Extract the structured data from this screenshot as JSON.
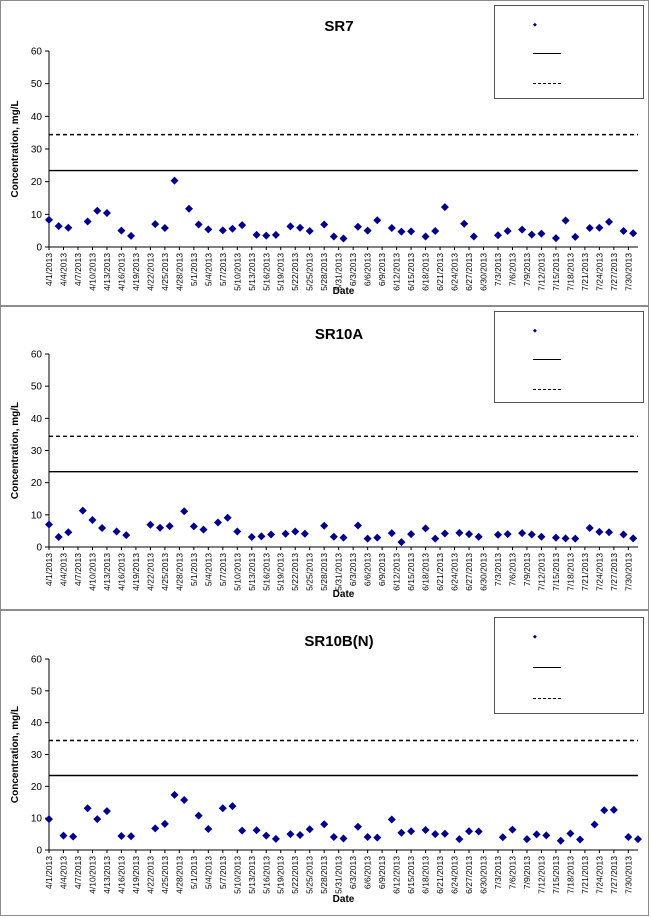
{
  "chart_data": [
    {
      "type": "scatter",
      "title": "SR7",
      "xlabel": "Date",
      "ylabel": "Concentration, mg/L",
      "ylim": [
        0,
        60
      ],
      "yticks": [
        0,
        10,
        20,
        30,
        40,
        50,
        60
      ],
      "xticks": [
        "4/1/2013",
        "4/4/2013",
        "4/7/2013",
        "4/10/2013",
        "4/13/2013",
        "4/16/2013",
        "4/19/2013",
        "4/22/2013",
        "4/25/2013",
        "4/28/2013",
        "5/1/2013",
        "5/4/2013",
        "5/7/2013",
        "5/10/2013",
        "5/13/2013",
        "5/16/2013",
        "5/19/2013",
        "5/22/2013",
        "5/25/2013",
        "5/28/2013",
        "5/31/2013",
        "6/3/2013",
        "6/6/2013",
        "6/9/2013",
        "6/12/2013",
        "6/15/2013",
        "6/18/2013",
        "6/21/2013",
        "6/24/2013",
        "6/27/2013",
        "6/30/2013",
        "7/3/2013",
        "7/6/2013",
        "7/9/2013",
        "7/12/2013",
        "7/15/2013",
        "7/18/2013",
        "7/21/2013",
        "7/24/2013",
        "7/27/2013",
        "7/30/2013"
      ],
      "reference_lines": [
        {
          "value": 23.4,
          "style": "solid"
        },
        {
          "value": 34.4,
          "style": "dashed"
        }
      ],
      "legend_position": "top-right",
      "series": [
        {
          "x": [
            "4/1/2013",
            "4/3/2013",
            "4/5/2013",
            "4/9/2013",
            "4/11/2013",
            "4/13/2013",
            "4/16/2013",
            "4/18/2013",
            "4/23/2013",
            "4/25/2013",
            "4/27/2013",
            "4/30/2013",
            "5/2/2013",
            "5/4/2013",
            "5/7/2013",
            "5/9/2013",
            "5/11/2013",
            "5/14/2013",
            "5/16/2013",
            "5/18/2013",
            "5/21/2013",
            "5/23/2013",
            "5/25/2013",
            "5/28/2013",
            "5/30/2013",
            "6/1/2013",
            "6/4/2013",
            "6/6/2013",
            "6/8/2013",
            "6/11/2013",
            "6/13/2013",
            "6/15/2013",
            "6/18/2013",
            "6/20/2013",
            "6/22/2013",
            "6/26/2013",
            "6/28/2013",
            "7/3/2013",
            "7/5/2013",
            "7/8/2013",
            "7/10/2013",
            "7/12/2013",
            "7/15/2013",
            "7/17/2013",
            "7/19/2013",
            "7/22/2013",
            "7/24/2013",
            "7/26/2013",
            "7/29/2013",
            "7/31/2013"
          ],
          "values": [
            8.3,
            6.4,
            5.9,
            7.8,
            11.1,
            10.4,
            5.0,
            3.4,
            7.0,
            5.8,
            20.3,
            11.7,
            6.9,
            5.4,
            5.1,
            5.6,
            6.7,
            3.7,
            3.5,
            3.7,
            6.3,
            5.9,
            4.9,
            6.9,
            3.2,
            2.6,
            6.2,
            5.0,
            8.2,
            5.8,
            4.7,
            4.8,
            3.2,
            4.9,
            12.2,
            7.1,
            3.2,
            3.6,
            4.9,
            5.3,
            3.8,
            4.1,
            2.7,
            8.1,
            3.1,
            5.8,
            5.9,
            7.7,
            4.9,
            4.2
          ]
        }
      ]
    },
    {
      "type": "scatter",
      "title": "SR10A",
      "xlabel": "Date",
      "ylabel": "Concentration, mg/L",
      "ylim": [
        0,
        60
      ],
      "yticks": [
        0,
        10,
        20,
        30,
        40,
        50,
        60
      ],
      "xticks": [
        "4/1/2013",
        "4/4/2013",
        "4/7/2013",
        "4/10/2013",
        "4/13/2013",
        "4/16/2013",
        "4/19/2013",
        "4/22/2013",
        "4/25/2013",
        "4/28/2013",
        "5/1/2013",
        "5/4/2013",
        "5/7/2013",
        "5/10/2013",
        "5/13/2013",
        "5/16/2013",
        "5/19/2013",
        "5/22/2013",
        "5/25/2013",
        "5/28/2013",
        "5/31/2013",
        "6/3/2013",
        "6/6/2013",
        "6/9/2013",
        "6/12/2013",
        "6/15/2013",
        "6/18/2013",
        "6/21/2013",
        "6/24/2013",
        "6/27/2013",
        "6/30/2013",
        "7/3/2013",
        "7/6/2013",
        "7/9/2013",
        "7/12/2013",
        "7/15/2013",
        "7/18/2013",
        "7/21/2013",
        "7/24/2013",
        "7/27/2013",
        "7/30/2013"
      ],
      "reference_lines": [
        {
          "value": 23.4,
          "style": "solid"
        },
        {
          "value": 34.4,
          "style": "dashed"
        }
      ],
      "legend_position": "top-right",
      "series": [
        {
          "x": [
            "4/1/2013",
            "4/3/2013",
            "4/5/2013",
            "4/8/2013",
            "4/10/2013",
            "4/12/2013",
            "4/15/2013",
            "4/17/2013",
            "4/22/2013",
            "4/24/2013",
            "4/26/2013",
            "4/29/2013",
            "5/1/2013",
            "5/3/2013",
            "5/6/2013",
            "5/8/2013",
            "5/10/2013",
            "5/13/2013",
            "5/15/2013",
            "5/17/2013",
            "5/20/2013",
            "5/22/2013",
            "5/24/2013",
            "5/28/2013",
            "5/30/2013",
            "6/1/2013",
            "6/4/2013",
            "6/6/2013",
            "6/8/2013",
            "6/11/2013",
            "6/13/2013",
            "6/15/2013",
            "6/18/2013",
            "6/20/2013",
            "6/22/2013",
            "6/25/2013",
            "6/27/2013",
            "6/29/2013",
            "7/3/2013",
            "7/5/2013",
            "7/8/2013",
            "7/10/2013",
            "7/12/2013",
            "7/15/2013",
            "7/17/2013",
            "7/19/2013",
            "7/22/2013",
            "7/24/2013",
            "7/26/2013",
            "7/29/2013",
            "7/31/2013"
          ],
          "values": [
            7.0,
            3.1,
            4.6,
            11.3,
            8.4,
            5.9,
            4.8,
            3.7,
            6.9,
            6.0,
            6.5,
            11.1,
            6.4,
            5.4,
            7.6,
            9.1,
            4.8,
            3.1,
            3.3,
            3.9,
            4.1,
            4.8,
            4.1,
            6.6,
            3.2,
            2.9,
            6.7,
            2.6,
            2.9,
            4.3,
            1.5,
            4.0,
            5.8,
            2.6,
            4.2,
            4.4,
            4.0,
            3.2,
            3.8,
            4.0,
            4.3,
            3.9,
            3.2,
            2.9,
            2.7,
            2.6,
            5.9,
            4.7,
            4.6,
            3.9,
            2.7
          ]
        }
      ]
    },
    {
      "type": "scatter",
      "title": "SR10B(N)",
      "xlabel": "Date",
      "ylabel": "Concentration, mg/L",
      "ylim": [
        0,
        60
      ],
      "yticks": [
        0,
        10,
        20,
        30,
        40,
        50,
        60
      ],
      "xticks": [
        "4/1/2013",
        "4/4/2013",
        "4/7/2013",
        "4/10/2013",
        "4/13/2013",
        "4/16/2013",
        "4/19/2013",
        "4/22/2013",
        "4/25/2013",
        "4/28/2013",
        "5/1/2013",
        "5/4/2013",
        "5/7/2013",
        "5/10/2013",
        "5/13/2013",
        "5/16/2013",
        "5/19/2013",
        "5/22/2013",
        "5/25/2013",
        "5/28/2013",
        "5/31/2013",
        "6/3/2013",
        "6/6/2013",
        "6/9/2013",
        "6/12/2013",
        "6/15/2013",
        "6/18/2013",
        "6/21/2013",
        "6/24/2013",
        "6/27/2013",
        "6/30/2013",
        "7/3/2013",
        "7/6/2013",
        "7/9/2013",
        "7/12/2013",
        "7/15/2013",
        "7/18/2013",
        "7/21/2013",
        "7/24/2013",
        "7/27/2013",
        "7/30/2013"
      ],
      "reference_lines": [
        {
          "value": 23.4,
          "style": "solid"
        },
        {
          "value": 34.4,
          "style": "dashed"
        }
      ],
      "legend_position": "top-right",
      "series": [
        {
          "x": [
            "4/1/2013",
            "4/4/2013",
            "4/6/2013",
            "4/9/2013",
            "4/11/2013",
            "4/13/2013",
            "4/16/2013",
            "4/18/2013",
            "4/23/2013",
            "4/25/2013",
            "4/27/2013",
            "4/29/2013",
            "5/2/2013",
            "5/4/2013",
            "5/7/2013",
            "5/9/2013",
            "5/11/2013",
            "5/14/2013",
            "5/16/2013",
            "5/18/2013",
            "5/21/2013",
            "5/23/2013",
            "5/25/2013",
            "5/28/2013",
            "5/30/2013",
            "6/1/2013",
            "6/4/2013",
            "6/6/2013",
            "6/8/2013",
            "6/11/2013",
            "6/13/2013",
            "6/15/2013",
            "6/18/2013",
            "6/20/2013",
            "6/22/2013",
            "6/25/2013",
            "6/27/2013",
            "6/29/2013",
            "7/4/2013",
            "7/6/2013",
            "7/9/2013",
            "7/11/2013",
            "7/13/2013",
            "7/16/2013",
            "7/18/2013",
            "7/20/2013",
            "7/23/2013",
            "7/25/2013",
            "7/27/2013",
            "7/30/2013",
            "8/1/2013"
          ],
          "values": [
            9.7,
            4.5,
            4.2,
            13.1,
            9.7,
            12.2,
            4.4,
            4.3,
            6.8,
            8.2,
            17.3,
            15.7,
            10.8,
            6.6,
            13.1,
            13.8,
            6.1,
            6.2,
            4.5,
            3.5,
            5.0,
            4.7,
            6.5,
            8.1,
            4.1,
            3.6,
            7.3,
            4.1,
            3.9,
            9.6,
            5.4,
            5.9,
            6.3,
            5.0,
            5.1,
            3.4,
            5.9,
            5.8,
            4.0,
            6.4,
            3.4,
            4.9,
            4.6,
            2.9,
            5.2,
            3.3,
            8.0,
            12.5,
            12.6,
            4.1,
            3.4
          ]
        }
      ]
    }
  ]
}
